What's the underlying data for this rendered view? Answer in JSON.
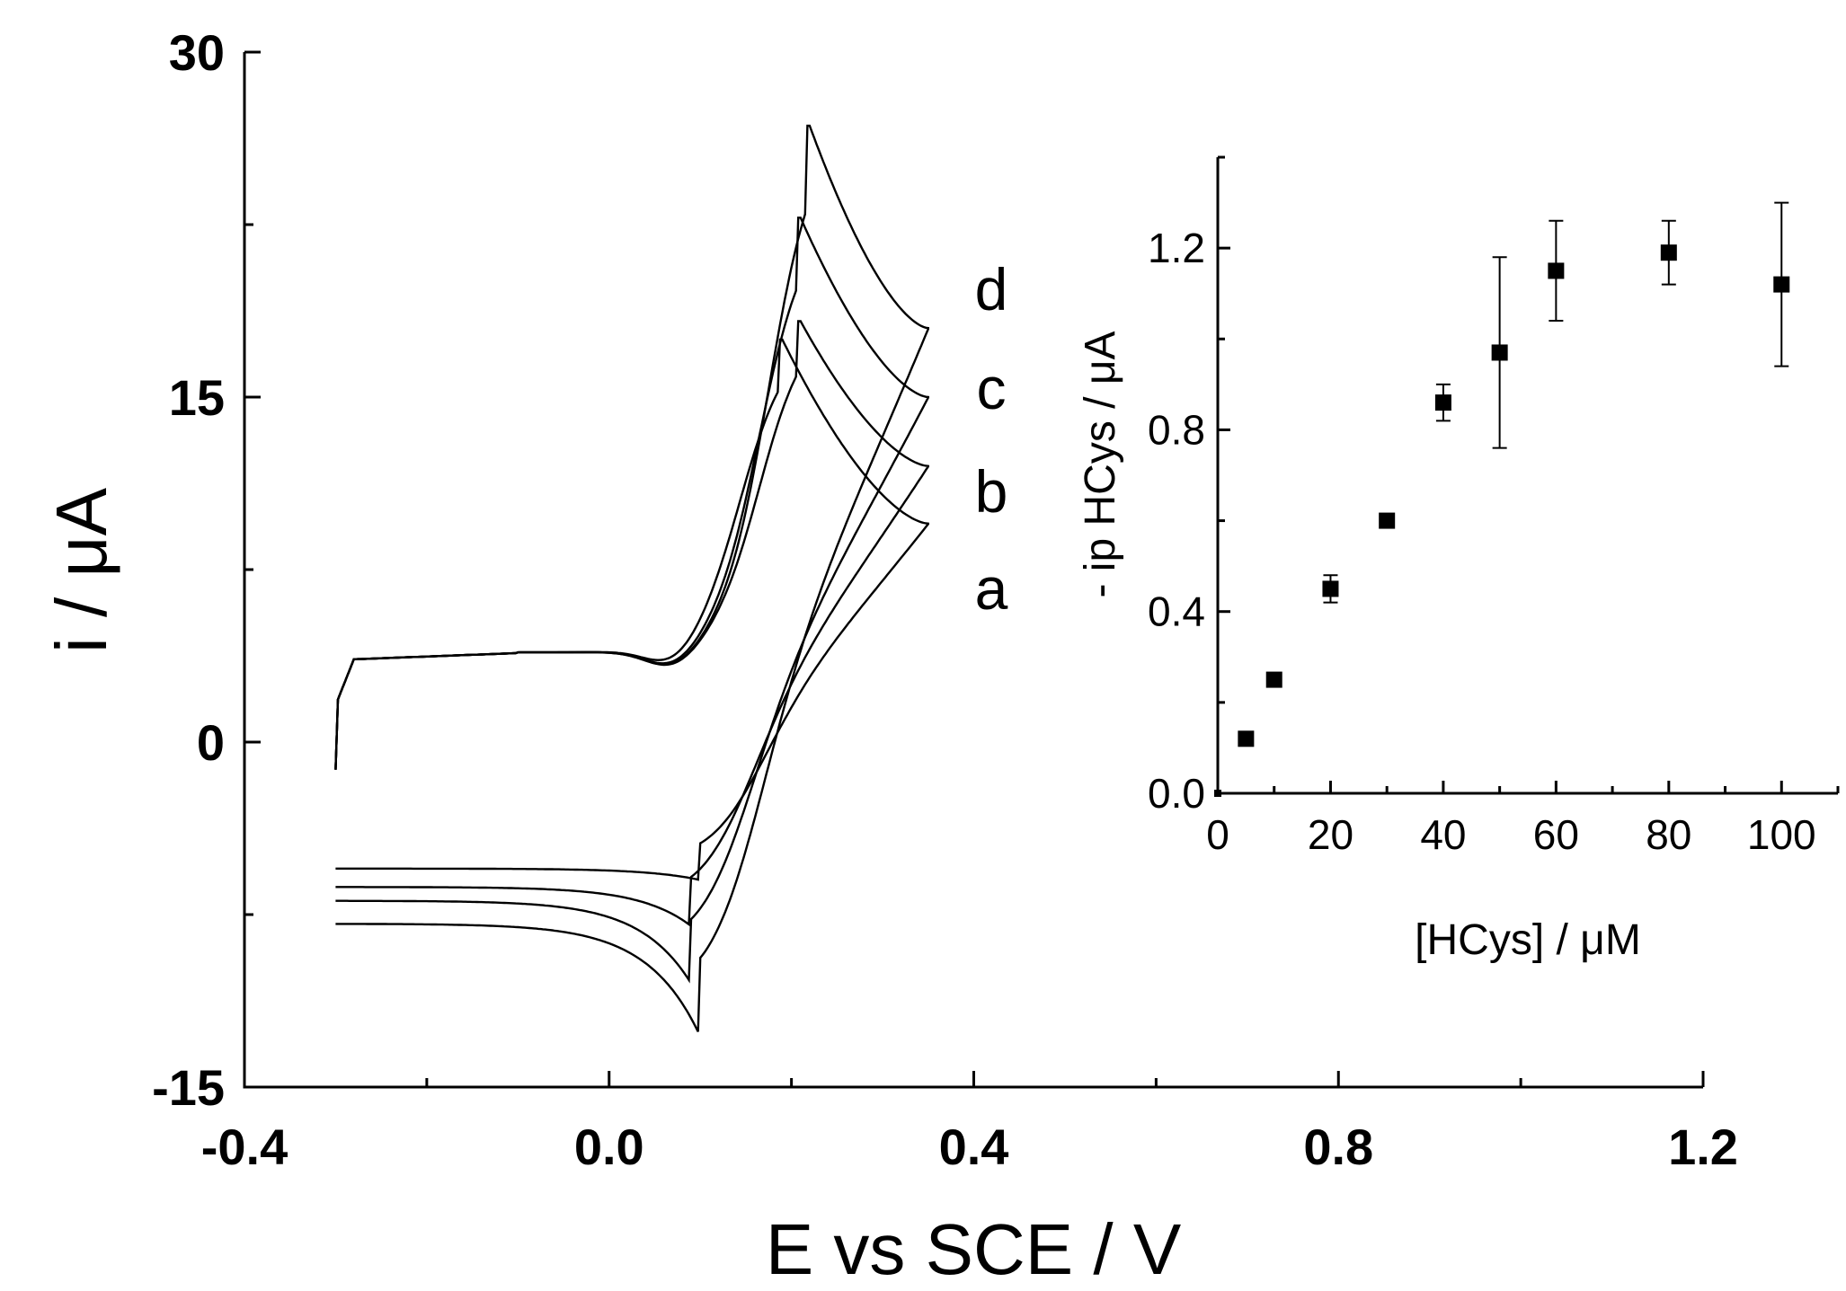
{
  "chart_data": [
    {
      "type": "line",
      "title": "",
      "xlabel": "E vs SCE / V",
      "ylabel": "i / μA",
      "xlim": [
        -0.4,
        1.2
      ],
      "ylim": [
        -15,
        30
      ],
      "xticks": [
        "-0.4",
        "0.0",
        "0.4",
        "0.8",
        "1.2"
      ],
      "yticks": [
        "-15",
        "0",
        "15",
        "30"
      ],
      "grid": false,
      "series": [
        {
          "name": "a",
          "E_start": -0.3,
          "E_vertex": 0.35,
          "anodic_peak": [
            0.19,
            17.5
          ],
          "cathodic_peak": [
            0.1,
            -6.0
          ],
          "i_at_vertex": 9.5,
          "i_return_start": 2.0
        },
        {
          "name": "b",
          "E_start": -0.3,
          "E_vertex": 0.35,
          "anodic_peak": [
            0.21,
            18.3
          ],
          "cathodic_peak": [
            0.09,
            -8.0
          ],
          "i_at_vertex": 12.0,
          "i_return_start": 2.8
        },
        {
          "name": "c",
          "E_start": -0.3,
          "E_vertex": 0.35,
          "anodic_peak": [
            0.21,
            22.8
          ],
          "cathodic_peak": [
            0.09,
            -10.5
          ],
          "i_at_vertex": 15.0,
          "i_return_start": 3.4
        },
        {
          "name": "d",
          "E_start": -0.3,
          "E_vertex": 0.35,
          "anodic_peak": [
            0.22,
            26.8
          ],
          "cathodic_peak": [
            0.1,
            -12.8
          ],
          "i_at_vertex": 18.0,
          "i_return_start": 4.4
        }
      ],
      "curve_labels": [
        "d",
        "c",
        "b",
        "a"
      ]
    },
    {
      "type": "scatter",
      "title": "",
      "xlabel": "[HCys] / μM",
      "ylabel": "- ip HCys / μA",
      "xlim": [
        0,
        110
      ],
      "ylim": [
        0,
        1.4
      ],
      "xticks": [
        "0",
        "20",
        "40",
        "60",
        "80",
        "100"
      ],
      "yticks": [
        "0.0",
        "0.4",
        "0.8",
        "1.2"
      ],
      "grid": false,
      "x": [
        0,
        5,
        10,
        20,
        30,
        40,
        50,
        60,
        80,
        100
      ],
      "y": [
        0.0,
        0.12,
        0.25,
        0.45,
        0.6,
        0.86,
        0.97,
        1.15,
        1.19,
        1.12
      ],
      "err": [
        0,
        0,
        0,
        0.03,
        0,
        0.04,
        0.21,
        0.11,
        0.07,
        0.18
      ]
    }
  ]
}
